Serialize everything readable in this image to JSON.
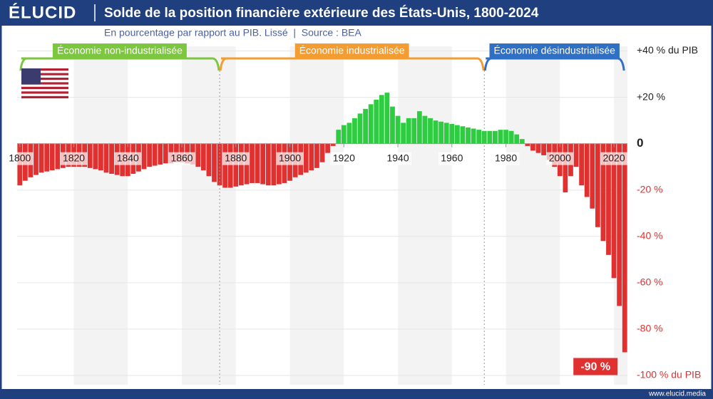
{
  "header": {
    "logo": "ÉLUCID",
    "footer": "www.elucid.media"
  },
  "chart_data": {
    "type": "bar",
    "title": "Solde de la position financière extérieure des États-Unis, 1800-2024",
    "subtitle": "En pourcentage par rapport au PIB. Lissé  |  Source : BEA",
    "x": [
      1800,
      1802,
      1804,
      1806,
      1808,
      1810,
      1812,
      1814,
      1816,
      1818,
      1820,
      1822,
      1824,
      1826,
      1828,
      1830,
      1832,
      1834,
      1836,
      1838,
      1840,
      1842,
      1844,
      1846,
      1848,
      1850,
      1852,
      1854,
      1856,
      1858,
      1860,
      1862,
      1864,
      1866,
      1868,
      1870,
      1872,
      1874,
      1876,
      1878,
      1880,
      1882,
      1884,
      1886,
      1888,
      1890,
      1892,
      1894,
      1896,
      1898,
      1900,
      1902,
      1904,
      1906,
      1908,
      1910,
      1912,
      1914,
      1916,
      1918,
      1920,
      1922,
      1924,
      1926,
      1928,
      1930,
      1932,
      1934,
      1936,
      1938,
      1940,
      1942,
      1944,
      1946,
      1948,
      1950,
      1952,
      1954,
      1956,
      1958,
      1960,
      1962,
      1964,
      1966,
      1968,
      1970,
      1972,
      1974,
      1976,
      1978,
      1980,
      1982,
      1984,
      1986,
      1988,
      1990,
      1992,
      1994,
      1996,
      1998,
      2000,
      2002,
      2004,
      2006,
      2008,
      2010,
      2012,
      2014,
      2016,
      2018,
      2020,
      2022,
      2024
    ],
    "values": [
      -18,
      -16,
      -14.5,
      -13.5,
      -12.5,
      -12,
      -11.5,
      -11,
      -10.5,
      -10,
      -10,
      -10,
      -10,
      -10.5,
      -11,
      -11.5,
      -12.5,
      -13,
      -13.5,
      -14,
      -14,
      -13,
      -12,
      -11,
      -10,
      -9.5,
      -9,
      -8.5,
      -8.5,
      -8,
      -8,
      -8.5,
      -9,
      -10,
      -11.5,
      -14,
      -16.5,
      -18,
      -19,
      -19,
      -18.5,
      -18,
      -17.5,
      -17,
      -17,
      -17.5,
      -18,
      -18,
      -17.5,
      -17,
      -16,
      -14.5,
      -13.5,
      -12.5,
      -11.5,
      -10.5,
      -8,
      -4,
      -1,
      6,
      8,
      9,
      11,
      13,
      15,
      17,
      19,
      21,
      22,
      16,
      12,
      9,
      11,
      11,
      14,
      12,
      11,
      10,
      9.5,
      9,
      8.5,
      8,
      7.5,
      7,
      6.5,
      6,
      5.5,
      5.5,
      5.5,
      6,
      6,
      5.5,
      4,
      2,
      -1,
      -3,
      -4,
      -5,
      -7,
      -10,
      -14,
      -21,
      -14,
      -10,
      -18,
      -23,
      -28,
      -36,
      -42,
      -48,
      -58,
      -70,
      -90
    ],
    "positive_color": "#2ecc40",
    "negative_color": "#e03030",
    "xlim": [
      1799,
      2025
    ],
    "xticks": [
      1800,
      1820,
      1840,
      1860,
      1880,
      1900,
      1920,
      1940,
      1960,
      1980,
      2000,
      2020
    ],
    "ylim": [
      -104,
      42
    ],
    "yticks": [
      {
        "value": 40,
        "label": "+40 % du PIB"
      },
      {
        "value": 20,
        "label": "+20 %"
      },
      0,
      {
        "value": -20,
        "label": "-20 %"
      },
      {
        "value": -40,
        "label": "-40 %"
      },
      {
        "value": -60,
        "label": "-60 %"
      },
      {
        "value": -80,
        "label": "-80 %"
      },
      {
        "value": -100,
        "label": "-100 % du PIB"
      }
    ],
    "grid": true,
    "eras": [
      {
        "label": "Économie non-industrialisée",
        "start": 1800,
        "end": 1874,
        "color": "#7dc63f"
      },
      {
        "label": "Économie industrialisée",
        "start": 1874,
        "end": 1972,
        "color": "#f39c32"
      },
      {
        "label": "Économie désindustrialisée",
        "start": 1972,
        "end": 2024,
        "color": "#2f6fc4"
      }
    ],
    "annotations": [
      {
        "text": "-90 %",
        "x": 2024,
        "y": -90
      }
    ]
  }
}
